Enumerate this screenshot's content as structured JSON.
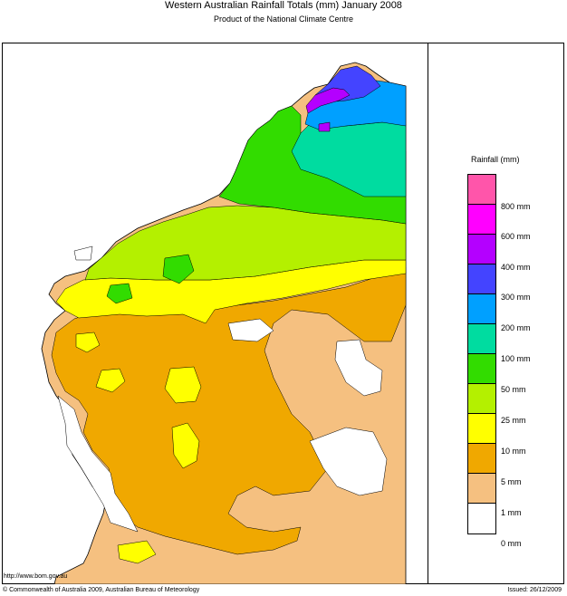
{
  "header": {
    "title": "Western Australian Rainfall Totals (mm) January 2008",
    "subtitle": "Product of the National Climate Centre"
  },
  "legend": {
    "title": "Rainfall (mm)",
    "labels": [
      "800 mm",
      "600 mm",
      "400 mm",
      "300 mm",
      "200 mm",
      "100 mm",
      "50 mm",
      "25 mm",
      "10 mm",
      "5 mm",
      "1 mm",
      "0 mm"
    ],
    "colors": [
      "#ff55aa",
      "#ff00ff",
      "#b400ff",
      "#4444ff",
      "#00a0ff",
      "#00dca0",
      "#32dc00",
      "#b4f000",
      "#ffff00",
      "#f0a800",
      "#f5c080",
      "#ffffff"
    ]
  },
  "colors": {
    "zero": "#ffffff",
    "r1": "#f5c080",
    "r5": "#f0a800",
    "r10": "#ffff00",
    "r25": "#b4f000",
    "r50": "#32dc00",
    "r100": "#00dca0",
    "r200": "#00a0ff",
    "r300": "#4444ff",
    "r400": "#b400ff"
  },
  "footer": {
    "url": "http://www.bom.gov.au",
    "copyright": "© Commonwealth of Australia 2009, Australian Bureau of Meteorology",
    "issued": "Issued: 26/12/2009"
  }
}
